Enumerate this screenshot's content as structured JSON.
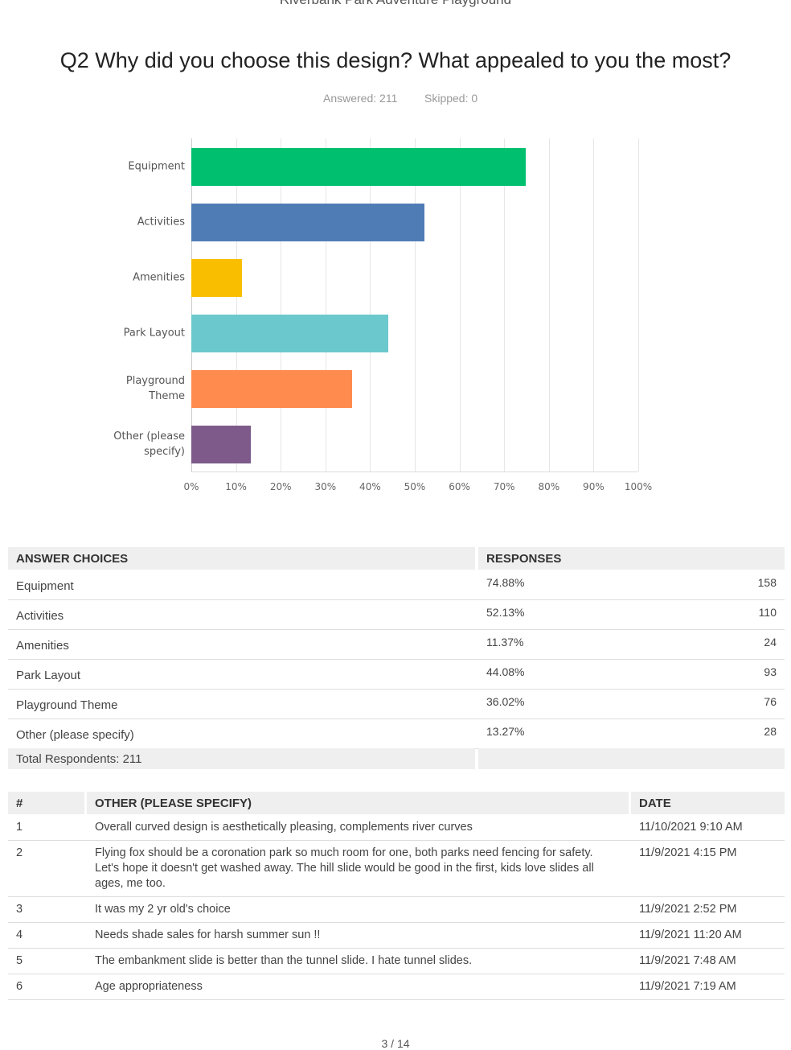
{
  "header": {
    "survey_title": "Riverbank Park Adventure Playground",
    "question": "Q2 Why did you choose this design? What appealed to you the most?",
    "answered": "Answered: 211",
    "skipped": "Skipped: 0"
  },
  "chart_data": {
    "type": "bar",
    "orientation": "horizontal",
    "categories": [
      "Equipment",
      "Activities",
      "Amenities",
      "Park Layout",
      "Playground Theme",
      "Other (please specify)"
    ],
    "values": [
      74.88,
      52.13,
      11.37,
      44.08,
      36.02,
      13.27
    ],
    "colors": [
      "#00bf6f",
      "#507cb6",
      "#f9be00",
      "#6bc8cd",
      "#ff8b4f",
      "#7d5a8a"
    ],
    "xlim": [
      0,
      100
    ],
    "xticks": [
      {
        "value": 0,
        "label": "0%"
      },
      {
        "value": 10,
        "label": "10%"
      },
      {
        "value": 20,
        "label": "20%"
      },
      {
        "value": 30,
        "label": "30%"
      },
      {
        "value": 40,
        "label": "40%"
      },
      {
        "value": 50,
        "label": "50%"
      },
      {
        "value": 60,
        "label": "60%"
      },
      {
        "value": 70,
        "label": "70%"
      },
      {
        "value": 80,
        "label": "80%"
      },
      {
        "value": 90,
        "label": "90%"
      },
      {
        "value": 100,
        "label": "100%"
      }
    ],
    "grid": true
  },
  "responses_table": {
    "headers": [
      "ANSWER CHOICES",
      "RESPONSES"
    ],
    "rows": [
      [
        "Equipment",
        "74.88%",
        "158"
      ],
      [
        "Activities",
        "52.13%",
        "110"
      ],
      [
        "Amenities",
        "11.37%",
        "24"
      ],
      [
        "Park Layout",
        "44.08%",
        "93"
      ],
      [
        "Playground Theme",
        "36.02%",
        "76"
      ],
      [
        "Other (please specify)",
        "13.27%",
        "28"
      ]
    ],
    "total": "Total Respondents: 211"
  },
  "other_table": {
    "headers": [
      "#",
      "OTHER (PLEASE SPECIFY)",
      "DATE"
    ],
    "rows": [
      [
        "1",
        "Overall curved design is aesthetically pleasing, complements river curves",
        "11/10/2021 9:10 AM"
      ],
      [
        "2",
        "Flying fox should be a coronation park so much room for one, both parks need fencing for safety. Let's hope it doesn't get washed away. The hill slide would be good in the first, kids love slides all ages, me too.",
        "11/9/2021 4:15 PM"
      ],
      [
        "3",
        "It was my 2 yr old's choice",
        "11/9/2021 2:52 PM"
      ],
      [
        "4",
        "Needs shade sales for harsh summer sun !!",
        "11/9/2021 11:20 AM"
      ],
      [
        "5",
        "The embankment slide is better than the tunnel slide. I hate tunnel slides.",
        "11/9/2021 7:48 AM"
      ],
      [
        "6",
        "Age appropriateness",
        "11/9/2021 7:19 AM"
      ]
    ]
  },
  "footer": {
    "page": "3 / 14"
  }
}
